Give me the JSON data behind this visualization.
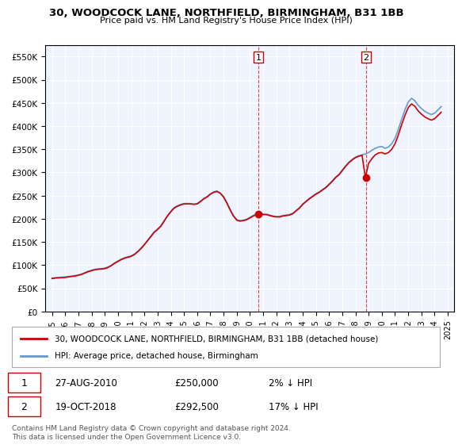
{
  "title": "30, WOODCOCK LANE, NORTHFIELD, BIRMINGHAM, B31 1BB",
  "subtitle": "Price paid vs. HM Land Registry's House Price Index (HPI)",
  "hpi_label": "HPI: Average price, detached house, Birmingham",
  "property_label": "30, WOODCOCK LANE, NORTHFIELD, BIRMINGHAM, B31 1BB (detached house)",
  "footnote": "Contains HM Land Registry data © Crown copyright and database right 2024.\nThis data is licensed under the Open Government Licence v3.0.",
  "transactions": [
    {
      "id": 1,
      "date": "27-AUG-2010",
      "price": 250000,
      "pct": "2%",
      "direction": "↓",
      "x_year": 2010.65
    },
    {
      "id": 2,
      "date": "19-OCT-2018",
      "price": 292500,
      "pct": "17%",
      "direction": "↓",
      "x_year": 2018.8
    }
  ],
  "hpi_color": "#6699cc",
  "property_color": "#cc0000",
  "marker_color": "#cc0000",
  "dashed_color": "#cc0000",
  "background_color": "#f0f4ff",
  "ylim": [
    0,
    575000
  ],
  "yticks": [
    0,
    50000,
    100000,
    150000,
    200000,
    250000,
    300000,
    350000,
    400000,
    450000,
    500000,
    550000
  ],
  "xlim": [
    1994.5,
    2025.5
  ],
  "hpi_data": {
    "years": [
      1995.0,
      1995.25,
      1995.5,
      1995.75,
      1996.0,
      1996.25,
      1996.5,
      1996.75,
      1997.0,
      1997.25,
      1997.5,
      1997.75,
      1998.0,
      1998.25,
      1998.5,
      1998.75,
      1999.0,
      1999.25,
      1999.5,
      1999.75,
      2000.0,
      2000.25,
      2000.5,
      2000.75,
      2001.0,
      2001.25,
      2001.5,
      2001.75,
      2002.0,
      2002.25,
      2002.5,
      2002.75,
      2003.0,
      2003.25,
      2003.5,
      2003.75,
      2004.0,
      2004.25,
      2004.5,
      2004.75,
      2005.0,
      2005.25,
      2005.5,
      2005.75,
      2006.0,
      2006.25,
      2006.5,
      2006.75,
      2007.0,
      2007.25,
      2007.5,
      2007.75,
      2008.0,
      2008.25,
      2008.5,
      2008.75,
      2009.0,
      2009.25,
      2009.5,
      2009.75,
      2010.0,
      2010.25,
      2010.5,
      2010.75,
      2011.0,
      2011.25,
      2011.5,
      2011.75,
      2012.0,
      2012.25,
      2012.5,
      2012.75,
      2013.0,
      2013.25,
      2013.5,
      2013.75,
      2014.0,
      2014.25,
      2014.5,
      2014.75,
      2015.0,
      2015.25,
      2015.5,
      2015.75,
      2016.0,
      2016.25,
      2016.5,
      2016.75,
      2017.0,
      2017.25,
      2017.5,
      2017.75,
      2018.0,
      2018.25,
      2018.5,
      2018.75,
      2019.0,
      2019.25,
      2019.5,
      2019.75,
      2020.0,
      2020.25,
      2020.5,
      2020.75,
      2021.0,
      2021.25,
      2021.5,
      2021.75,
      2022.0,
      2022.25,
      2022.5,
      2022.75,
      2023.0,
      2023.25,
      2023.5,
      2023.75,
      2024.0,
      2024.25,
      2024.5
    ],
    "values": [
      72000,
      73000,
      73500,
      74000,
      74500,
      75500,
      76500,
      77500,
      79000,
      81000,
      84000,
      87000,
      89000,
      91000,
      92000,
      92500,
      93500,
      96000,
      100000,
      105000,
      109000,
      113000,
      116000,
      118000,
      120000,
      124000,
      130000,
      137000,
      145000,
      154000,
      163000,
      172000,
      178000,
      185000,
      196000,
      207000,
      216000,
      224000,
      228000,
      231000,
      233000,
      233000,
      233000,
      232000,
      233000,
      238000,
      244000,
      248000,
      254000,
      258000,
      260000,
      256000,
      248000,
      235000,
      220000,
      207000,
      198000,
      196000,
      197000,
      199000,
      203000,
      207000,
      210000,
      212000,
      210000,
      210000,
      208000,
      206000,
      205000,
      205000,
      207000,
      208000,
      209000,
      212000,
      218000,
      224000,
      232000,
      238000,
      244000,
      249000,
      254000,
      258000,
      263000,
      268000,
      275000,
      282000,
      290000,
      296000,
      305000,
      314000,
      322000,
      328000,
      333000,
      336000,
      338000,
      340000,
      343000,
      348000,
      352000,
      355000,
      356000,
      352000,
      355000,
      362000,
      374000,
      393000,
      415000,
      435000,
      452000,
      460000,
      455000,
      445000,
      438000,
      432000,
      428000,
      425000,
      428000,
      435000,
      442000
    ]
  },
  "property_data": {
    "years": [
      1995.0,
      1995.25,
      1995.5,
      1995.75,
      1996.0,
      1996.25,
      1996.5,
      1996.75,
      1997.0,
      1997.25,
      1997.5,
      1997.75,
      1998.0,
      1998.25,
      1998.5,
      1998.75,
      1999.0,
      1999.25,
      1999.5,
      1999.75,
      2000.0,
      2000.25,
      2000.5,
      2000.75,
      2001.0,
      2001.25,
      2001.5,
      2001.75,
      2002.0,
      2002.25,
      2002.5,
      2002.75,
      2003.0,
      2003.25,
      2003.5,
      2003.75,
      2004.0,
      2004.25,
      2004.5,
      2004.75,
      2005.0,
      2005.25,
      2005.5,
      2005.75,
      2006.0,
      2006.25,
      2006.5,
      2006.75,
      2007.0,
      2007.25,
      2007.5,
      2007.75,
      2008.0,
      2008.25,
      2008.5,
      2008.75,
      2009.0,
      2009.25,
      2009.5,
      2009.75,
      2010.0,
      2010.25,
      2010.5,
      2010.75,
      2011.0,
      2011.25,
      2011.5,
      2011.75,
      2012.0,
      2012.25,
      2012.5,
      2012.75,
      2013.0,
      2013.25,
      2013.5,
      2013.75,
      2014.0,
      2014.25,
      2014.5,
      2014.75,
      2015.0,
      2015.25,
      2015.5,
      2015.75,
      2016.0,
      2016.25,
      2016.5,
      2016.75,
      2017.0,
      2017.25,
      2017.5,
      2017.75,
      2018.0,
      2018.25,
      2018.5,
      2018.75,
      2019.0,
      2019.25,
      2019.5,
      2019.75,
      2020.0,
      2020.25,
      2020.5,
      2020.75,
      2021.0,
      2021.25,
      2021.5,
      2021.75,
      2022.0,
      2022.25,
      2022.5,
      2022.75,
      2023.0,
      2023.25,
      2023.5,
      2023.75,
      2024.0,
      2024.25,
      2024.5
    ],
    "values": [
      71000,
      72000,
      72500,
      73000,
      73500,
      74500,
      75500,
      76500,
      78000,
      80000,
      83000,
      86000,
      88000,
      90000,
      91000,
      91500,
      92500,
      95000,
      99000,
      104000,
      108000,
      112000,
      115000,
      117000,
      119000,
      123000,
      129000,
      136000,
      144000,
      153000,
      162000,
      171000,
      177000,
      184000,
      195000,
      206000,
      215000,
      223000,
      227000,
      230000,
      232000,
      232000,
      232000,
      231000,
      232000,
      237000,
      243000,
      247000,
      253000,
      257000,
      259000,
      255000,
      247000,
      234000,
      219000,
      206000,
      197000,
      195000,
      196000,
      198000,
      202000,
      206000,
      209000,
      211000,
      209000,
      209000,
      207000,
      205000,
      204000,
      204000,
      206000,
      207000,
      208000,
      211000,
      217000,
      223000,
      231000,
      237000,
      243000,
      248000,
      253000,
      257000,
      262000,
      267000,
      274000,
      281000,
      289000,
      295000,
      304000,
      313000,
      321000,
      327000,
      332000,
      335000,
      337000,
      289000,
      320000,
      330000,
      338000,
      342000,
      343000,
      340000,
      343000,
      350000,
      362000,
      381000,
      403000,
      423000,
      440000,
      448000,
      443000,
      433000,
      426000,
      420000,
      416000,
      413000,
      416000,
      423000,
      430000
    ]
  }
}
